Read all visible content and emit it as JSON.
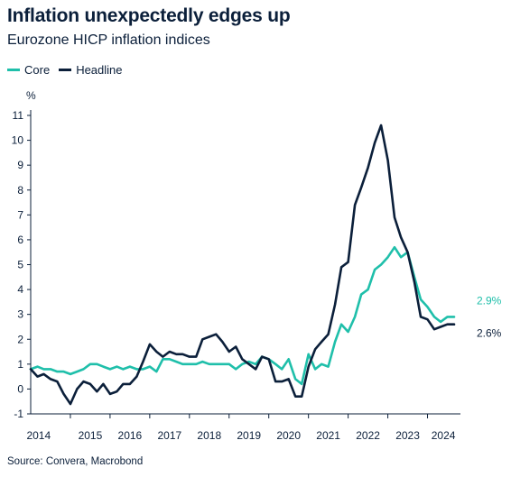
{
  "title": "Inflation unexpectedly edges up",
  "subtitle": "Eurozone HICP inflation indices",
  "source": "Source: Convera, Macrobond",
  "colors": {
    "core": "#1fbfaa",
    "headline": "#0b1f3a",
    "axis": "#0b1f3a"
  },
  "chart_data": {
    "type": "line",
    "title": "Inflation unexpectedly edges up",
    "subtitle": "Eurozone HICP inflation indices",
    "xlabel": "",
    "ylabel": "%",
    "xlim": [
      2014.0,
      2024.83
    ],
    "ylim": [
      -1,
      11
    ],
    "yticks": [
      -1,
      0,
      1,
      2,
      3,
      4,
      5,
      6,
      7,
      8,
      9,
      10,
      11
    ],
    "xticks": [
      "2014",
      "2015",
      "2016",
      "2017",
      "2018",
      "2019",
      "2020",
      "2021",
      "2022",
      "2023",
      "2024"
    ],
    "legend": "top-left",
    "grid": false,
    "series": [
      {
        "name": "Core",
        "end_label": "2.9%",
        "points": [
          [
            2014.0,
            0.8
          ],
          [
            2014.17,
            0.9
          ],
          [
            2014.33,
            0.8
          ],
          [
            2014.5,
            0.8
          ],
          [
            2014.67,
            0.7
          ],
          [
            2014.83,
            0.7
          ],
          [
            2015.0,
            0.6
          ],
          [
            2015.17,
            0.7
          ],
          [
            2015.33,
            0.8
          ],
          [
            2015.5,
            1.0
          ],
          [
            2015.67,
            1.0
          ],
          [
            2015.83,
            0.9
          ],
          [
            2016.0,
            0.8
          ],
          [
            2016.17,
            0.9
          ],
          [
            2016.33,
            0.8
          ],
          [
            2016.5,
            0.9
          ],
          [
            2016.67,
            0.8
          ],
          [
            2016.83,
            0.8
          ],
          [
            2017.0,
            0.9
          ],
          [
            2017.17,
            0.7
          ],
          [
            2017.33,
            1.2
          ],
          [
            2017.5,
            1.2
          ],
          [
            2017.67,
            1.1
          ],
          [
            2017.83,
            1.0
          ],
          [
            2018.0,
            1.0
          ],
          [
            2018.17,
            1.0
          ],
          [
            2018.33,
            1.1
          ],
          [
            2018.5,
            1.0
          ],
          [
            2018.67,
            1.0
          ],
          [
            2018.83,
            1.0
          ],
          [
            2019.0,
            1.0
          ],
          [
            2019.17,
            0.8
          ],
          [
            2019.33,
            1.0
          ],
          [
            2019.5,
            1.1
          ],
          [
            2019.67,
            1.0
          ],
          [
            2019.83,
            1.3
          ],
          [
            2020.0,
            1.2
          ],
          [
            2020.17,
            1.0
          ],
          [
            2020.33,
            0.8
          ],
          [
            2020.5,
            1.2
          ],
          [
            2020.67,
            0.4
          ],
          [
            2020.83,
            0.2
          ],
          [
            2021.0,
            1.4
          ],
          [
            2021.17,
            0.8
          ],
          [
            2021.33,
            1.0
          ],
          [
            2021.5,
            0.9
          ],
          [
            2021.67,
            1.9
          ],
          [
            2021.83,
            2.6
          ],
          [
            2022.0,
            2.3
          ],
          [
            2022.17,
            2.9
          ],
          [
            2022.33,
            3.8
          ],
          [
            2022.5,
            4.0
          ],
          [
            2022.67,
            4.8
          ],
          [
            2022.83,
            5.0
          ],
          [
            2023.0,
            5.3
          ],
          [
            2023.17,
            5.7
          ],
          [
            2023.33,
            5.3
          ],
          [
            2023.5,
            5.5
          ],
          [
            2023.67,
            4.5
          ],
          [
            2023.83,
            3.6
          ],
          [
            2024.0,
            3.3
          ],
          [
            2024.17,
            2.9
          ],
          [
            2024.33,
            2.7
          ],
          [
            2024.5,
            2.9
          ],
          [
            2024.67,
            2.9
          ]
        ]
      },
      {
        "name": "Headline",
        "end_label": "2.6%",
        "points": [
          [
            2014.0,
            0.8
          ],
          [
            2014.17,
            0.5
          ],
          [
            2014.33,
            0.6
          ],
          [
            2014.5,
            0.4
          ],
          [
            2014.67,
            0.3
          ],
          [
            2014.83,
            -0.2
          ],
          [
            2015.0,
            -0.6
          ],
          [
            2015.17,
            0.0
          ],
          [
            2015.33,
            0.3
          ],
          [
            2015.5,
            0.2
          ],
          [
            2015.67,
            -0.1
          ],
          [
            2015.83,
            0.2
          ],
          [
            2016.0,
            -0.2
          ],
          [
            2016.17,
            -0.1
          ],
          [
            2016.33,
            0.2
          ],
          [
            2016.5,
            0.2
          ],
          [
            2016.67,
            0.5
          ],
          [
            2016.83,
            1.1
          ],
          [
            2017.0,
            1.8
          ],
          [
            2017.17,
            1.5
          ],
          [
            2017.33,
            1.3
          ],
          [
            2017.5,
            1.5
          ],
          [
            2017.67,
            1.4
          ],
          [
            2017.83,
            1.4
          ],
          [
            2018.0,
            1.3
          ],
          [
            2018.17,
            1.3
          ],
          [
            2018.33,
            2.0
          ],
          [
            2018.5,
            2.1
          ],
          [
            2018.67,
            2.2
          ],
          [
            2018.83,
            1.9
          ],
          [
            2019.0,
            1.5
          ],
          [
            2019.17,
            1.7
          ],
          [
            2019.33,
            1.2
          ],
          [
            2019.5,
            1.0
          ],
          [
            2019.67,
            0.8
          ],
          [
            2019.83,
            1.3
          ],
          [
            2020.0,
            1.2
          ],
          [
            2020.17,
            0.3
          ],
          [
            2020.33,
            0.3
          ],
          [
            2020.5,
            0.4
          ],
          [
            2020.67,
            -0.3
          ],
          [
            2020.83,
            -0.3
          ],
          [
            2021.0,
            0.9
          ],
          [
            2021.17,
            1.6
          ],
          [
            2021.33,
            1.9
          ],
          [
            2021.5,
            2.2
          ],
          [
            2021.67,
            3.4
          ],
          [
            2021.83,
            4.9
          ],
          [
            2022.0,
            5.1
          ],
          [
            2022.17,
            7.4
          ],
          [
            2022.33,
            8.1
          ],
          [
            2022.5,
            8.9
          ],
          [
            2022.67,
            9.9
          ],
          [
            2022.83,
            10.6
          ],
          [
            2023.0,
            9.2
          ],
          [
            2023.17,
            6.9
          ],
          [
            2023.33,
            6.1
          ],
          [
            2023.5,
            5.5
          ],
          [
            2023.67,
            4.3
          ],
          [
            2023.83,
            2.9
          ],
          [
            2024.0,
            2.8
          ],
          [
            2024.17,
            2.4
          ],
          [
            2024.33,
            2.5
          ],
          [
            2024.5,
            2.6
          ],
          [
            2024.67,
            2.6
          ]
        ]
      }
    ]
  }
}
